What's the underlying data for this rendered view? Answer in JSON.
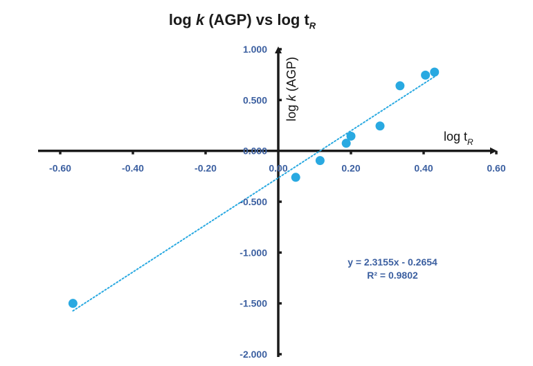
{
  "chart_data": {
    "type": "scatter",
    "title_parts": {
      "prefix": "log ",
      "italic": "k",
      "middle": " (AGP) vs log t",
      "subscript": "R"
    },
    "xlabel_parts": {
      "prefix": "log t",
      "subscript": "R"
    },
    "ylabel_parts": {
      "prefix": "log ",
      "italic": "k",
      "suffix": " (AGP)"
    },
    "xlim": [
      -0.6,
      0.6
    ],
    "ylim": [
      -2.0,
      1.0
    ],
    "x_ticks": [
      "-0.60",
      "-0.40",
      "-0.20",
      "0.00",
      "0.20",
      "0.40",
      "0.60"
    ],
    "x_tick_values": [
      -0.6,
      -0.4,
      -0.2,
      0.0,
      0.2,
      0.4,
      0.6
    ],
    "y_ticks": [
      "1.000",
      "0.500",
      "0.000",
      "-0.500",
      "-1.000",
      "-1.500",
      "-2.000"
    ],
    "y_tick_values": [
      1.0,
      0.5,
      0.0,
      -0.5,
      -1.0,
      -1.5,
      -2.0
    ],
    "series": [
      {
        "name": "log k (AGP)",
        "color": "#29a9e1",
        "points": [
          {
            "x": -0.565,
            "y": -1.5
          },
          {
            "x": 0.048,
            "y": -0.26
          },
          {
            "x": 0.115,
            "y": -0.095
          },
          {
            "x": 0.187,
            "y": 0.075
          },
          {
            "x": 0.2,
            "y": 0.145
          },
          {
            "x": 0.28,
            "y": 0.245
          },
          {
            "x": 0.335,
            "y": 0.64
          },
          {
            "x": 0.405,
            "y": 0.745
          },
          {
            "x": 0.43,
            "y": 0.775
          }
        ]
      }
    ],
    "trendline": {
      "slope": 2.3155,
      "intercept": -0.2654,
      "x_range": [
        -0.565,
        0.43
      ],
      "color": "#29a9e1",
      "style": "dotted"
    },
    "equation_text": "y = 2.3155x - 0.2654",
    "r2_text": "R² = 0.9802",
    "grid": false,
    "axis_color": "#1a1a1a"
  }
}
